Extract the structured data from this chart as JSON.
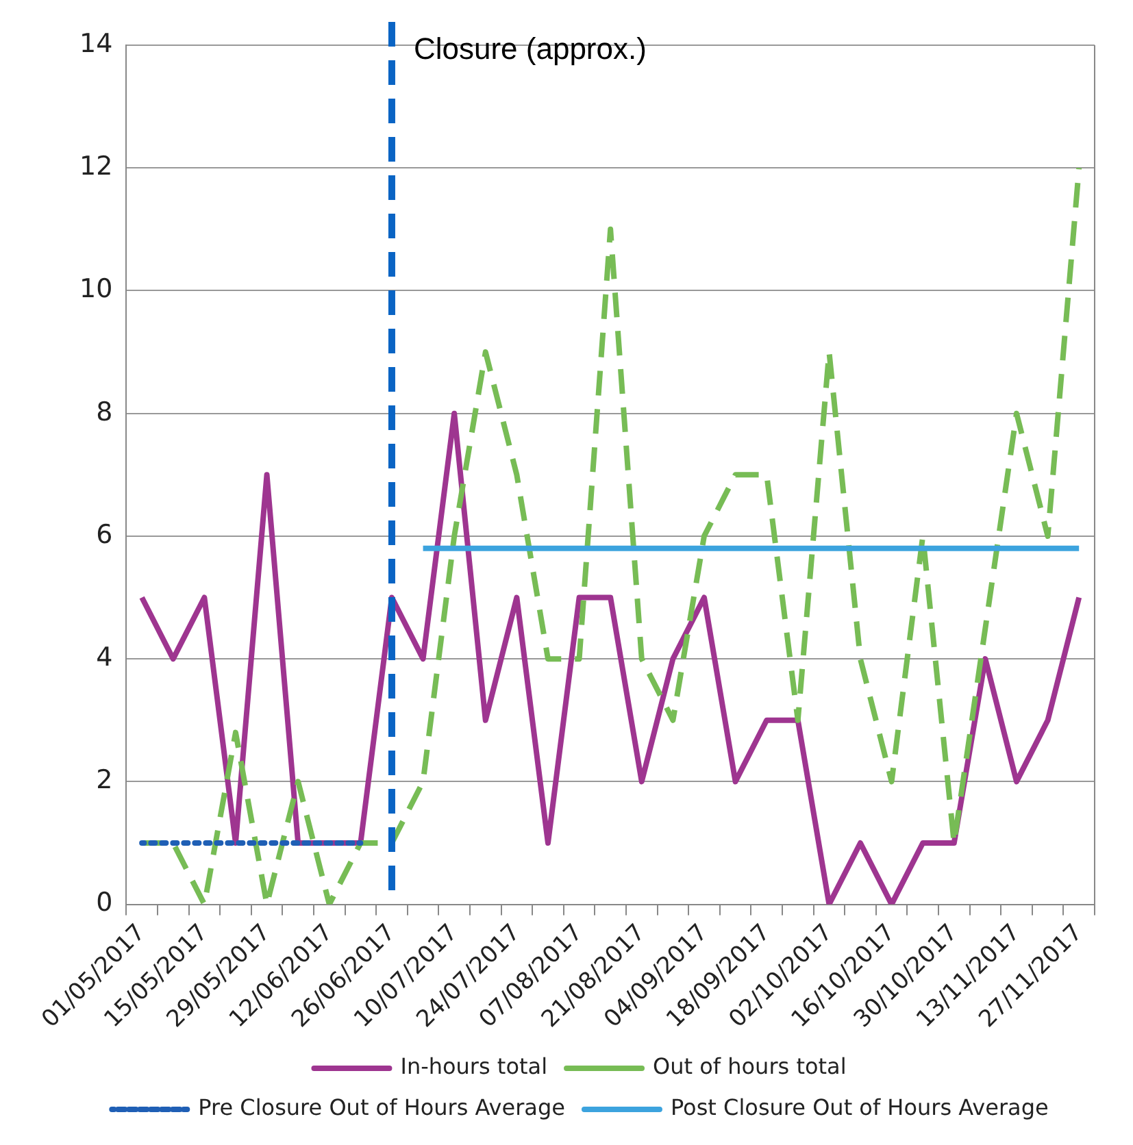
{
  "chart_data": {
    "type": "line",
    "categories": [
      "01/05/2017",
      null,
      "15/05/2017",
      null,
      "29/05/2017",
      null,
      "12/06/2017",
      null,
      "26/06/2017",
      null,
      "10/07/2017",
      null,
      "24/07/2017",
      null,
      "07/08/2017",
      null,
      "21/08/2017",
      null,
      "04/09/2017",
      null,
      "18/09/2017",
      null,
      "02/10/2017",
      null,
      "16/10/2017",
      null,
      "30/10/2017",
      null,
      "13/11/2017",
      null,
      "27/11/2017"
    ],
    "series": [
      {
        "name": "In-hours total",
        "color": "#9e3590",
        "line_style": "solid",
        "values": [
          5,
          4,
          5,
          1,
          7,
          1,
          1,
          1,
          5,
          4,
          8,
          3,
          5,
          1,
          5,
          5,
          2,
          4,
          5,
          2,
          3,
          3,
          0,
          1,
          0,
          1,
          1,
          4,
          2,
          3,
          5
        ]
      },
      {
        "name": "Out of hours total",
        "color": "#77bc55",
        "line_style": "dashed",
        "values": [
          1,
          1,
          0,
          2.8,
          0,
          2,
          0,
          1,
          1,
          2,
          6,
          9,
          7,
          4,
          4,
          11,
          4,
          3,
          6,
          7,
          7,
          3,
          9,
          4,
          2,
          6,
          1,
          4.5,
          8,
          6,
          12
        ]
      },
      {
        "name": "Pre Closure Out of Hours Average",
        "color": "#1f5fb5",
        "line_style": "dotted",
        "values": [
          1,
          1,
          1,
          1,
          1,
          1,
          1,
          1,
          null,
          null,
          null,
          null,
          null,
          null,
          null,
          null,
          null,
          null,
          null,
          null,
          null,
          null,
          null,
          null,
          null,
          null,
          null,
          null,
          null,
          null,
          null
        ]
      },
      {
        "name": "Post Closure Out of Hours Average",
        "color": "#3ca3de",
        "line_style": "solid",
        "values": [
          null,
          null,
          null,
          null,
          null,
          null,
          null,
          null,
          null,
          5.8,
          5.8,
          5.8,
          5.8,
          5.8,
          5.8,
          5.8,
          5.8,
          5.8,
          5.8,
          5.8,
          5.8,
          5.8,
          5.8,
          5.8,
          5.8,
          5.8,
          5.8,
          5.8,
          5.8,
          5.8,
          5.8
        ]
      }
    ],
    "ylim": [
      0,
      14
    ],
    "yticks": [
      0,
      2,
      4,
      6,
      8,
      10,
      12,
      14
    ],
    "grid": "y",
    "legend": "bottom",
    "marker": "none",
    "ref_lines": [
      {
        "axis": "x",
        "value": "26/06/2017",
        "label": "Closure (approx.)",
        "color": "#0a64c4",
        "line_style": "dashed"
      }
    ]
  }
}
